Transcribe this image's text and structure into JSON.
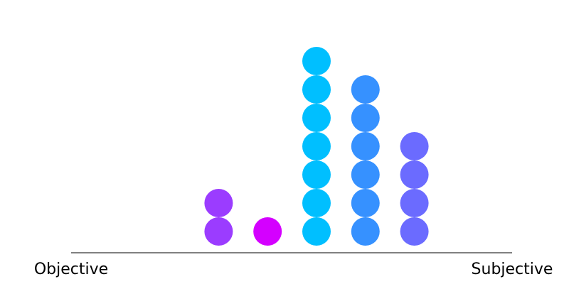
{
  "chart_data": {
    "type": "scatter",
    "title": "",
    "xlabel": "",
    "ylabel": "",
    "axis_labels": {
      "left": "Objective",
      "right": "Subjective"
    },
    "grid": false,
    "legend": "none",
    "series": [
      {
        "column": 1,
        "count": 0,
        "color": "#9b3cff"
      },
      {
        "column": 2,
        "count": 0,
        "color": "#9b3cff"
      },
      {
        "column": 3,
        "count": 0,
        "color": "#9b3cff"
      },
      {
        "column": 4,
        "count": 2,
        "color": "#9b3cff"
      },
      {
        "column": 5,
        "count": 1,
        "color": "#d400ff"
      },
      {
        "column": 6,
        "count": 7,
        "color": "#00bfff"
      },
      {
        "column": 7,
        "count": 6,
        "color": "#3691ff"
      },
      {
        "column": 8,
        "count": 4,
        "color": "#6b6bff"
      }
    ]
  }
}
